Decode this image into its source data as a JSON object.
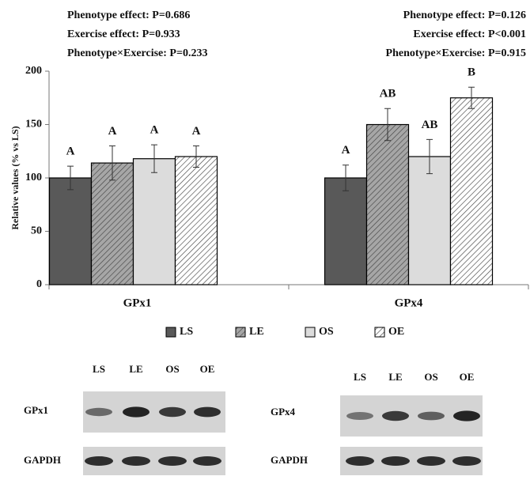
{
  "chart_data": {
    "type": "bar",
    "ylabel": "Relative values (% vs LS)",
    "categories": [
      "GPx1",
      "GPx4"
    ],
    "ylim": [
      0,
      200
    ],
    "yticks": [
      0,
      50,
      100,
      150,
      200
    ],
    "grid": false,
    "legend": "bottom",
    "annotations": [
      [
        "Phenotype effect: P=0.686",
        "Exercise effect: P=0.933",
        "Phenotype×Exercise: P=0.233"
      ],
      [
        "Phenotype effect: P=0.126",
        "Exercise effect: P<0.001",
        "Phenotype×Exercise: P=0.915"
      ]
    ],
    "series": [
      {
        "name": "LS",
        "color": "#595959",
        "hatch": false,
        "values": [
          100,
          100
        ],
        "errors": [
          11,
          12
        ],
        "letters": [
          "A",
          "A"
        ]
      },
      {
        "name": "LE",
        "color": "#a6a6a6",
        "hatch": true,
        "values": [
          114,
          150
        ],
        "errors": [
          16,
          15
        ],
        "letters": [
          "A",
          "AB"
        ]
      },
      {
        "name": "OS",
        "color": "#dcdcdc",
        "hatch": false,
        "values": [
          118,
          120
        ],
        "errors": [
          13,
          16
        ],
        "letters": [
          "A",
          "AB"
        ]
      },
      {
        "name": "OE",
        "color": "#ffffff",
        "hatch": true,
        "values": [
          120,
          175
        ],
        "errors": [
          10,
          10
        ],
        "letters": [
          "A",
          "B"
        ]
      }
    ]
  },
  "blots": [
    {
      "lanes": [
        "LS",
        "LE",
        "OS",
        "OE"
      ],
      "target": "GPx1",
      "control": "GAPDH"
    },
    {
      "lanes": [
        "LS",
        "LE",
        "OS",
        "OE"
      ],
      "target": "GPx4",
      "control": "GAPDH"
    }
  ]
}
